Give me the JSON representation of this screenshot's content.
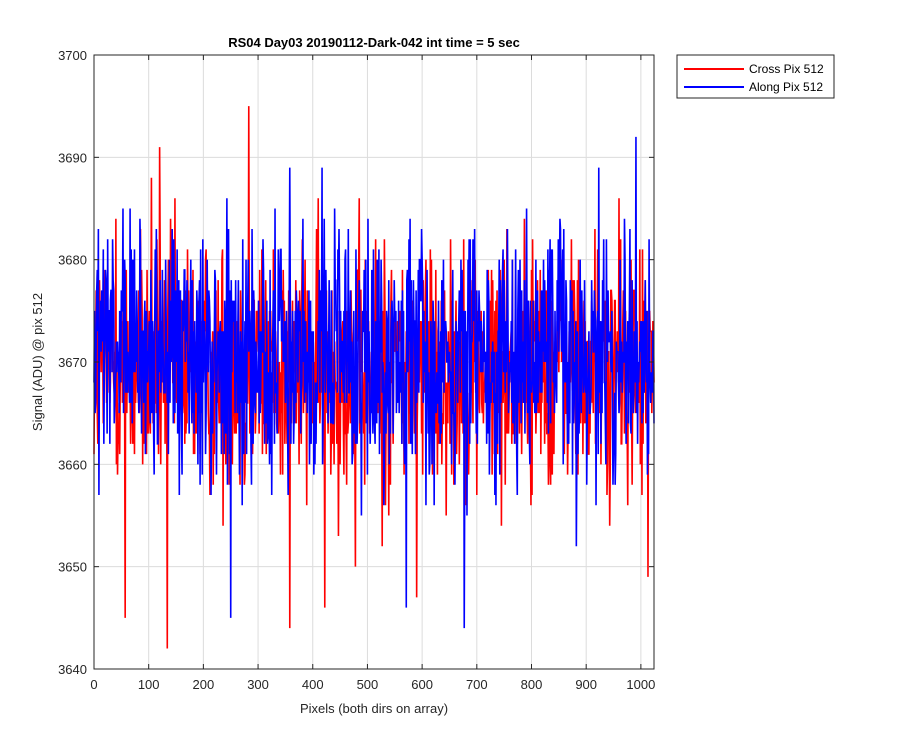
{
  "chart_data": {
    "type": "line",
    "title": "RS04 Day03 20190112-Dark-042 int time = 5 sec",
    "xlabel": "Pixels (both dirs on array)",
    "ylabel": "Signal (ADU) @ pix 512",
    "xlim": [
      0,
      1024
    ],
    "ylim": [
      3640,
      3700
    ],
    "xticks": [
      0,
      100,
      200,
      300,
      400,
      500,
      600,
      700,
      800,
      900,
      1000
    ],
    "yticks": [
      3640,
      3650,
      3660,
      3670,
      3680,
      3690,
      3700
    ],
    "grid": true,
    "legend_position": "outside-top-right",
    "series": [
      {
        "name": "Cross Pix 512",
        "color": "#ff0000",
        "mean": 3669.5,
        "peaks": [
          [
            40,
            3684
          ],
          [
            57,
            3645
          ],
          [
            105,
            3688
          ],
          [
            120,
            3691
          ],
          [
            134,
            3642
          ],
          [
            283,
            3695
          ],
          [
            358,
            3644
          ],
          [
            422,
            3646
          ],
          [
            478,
            3650
          ],
          [
            527,
            3652
          ],
          [
            590,
            3647
          ],
          [
            1013,
            3649
          ]
        ]
      },
      {
        "name": "Along Pix 512",
        "color": "#0000ff",
        "mean": 3670.5,
        "peaks": [
          [
            25,
            3682
          ],
          [
            250,
            3645
          ],
          [
            358,
            3689
          ],
          [
            417,
            3689
          ],
          [
            571,
            3646
          ],
          [
            677,
            3644
          ],
          [
            923,
            3689
          ],
          [
            991,
            3692
          ]
        ]
      }
    ]
  }
}
